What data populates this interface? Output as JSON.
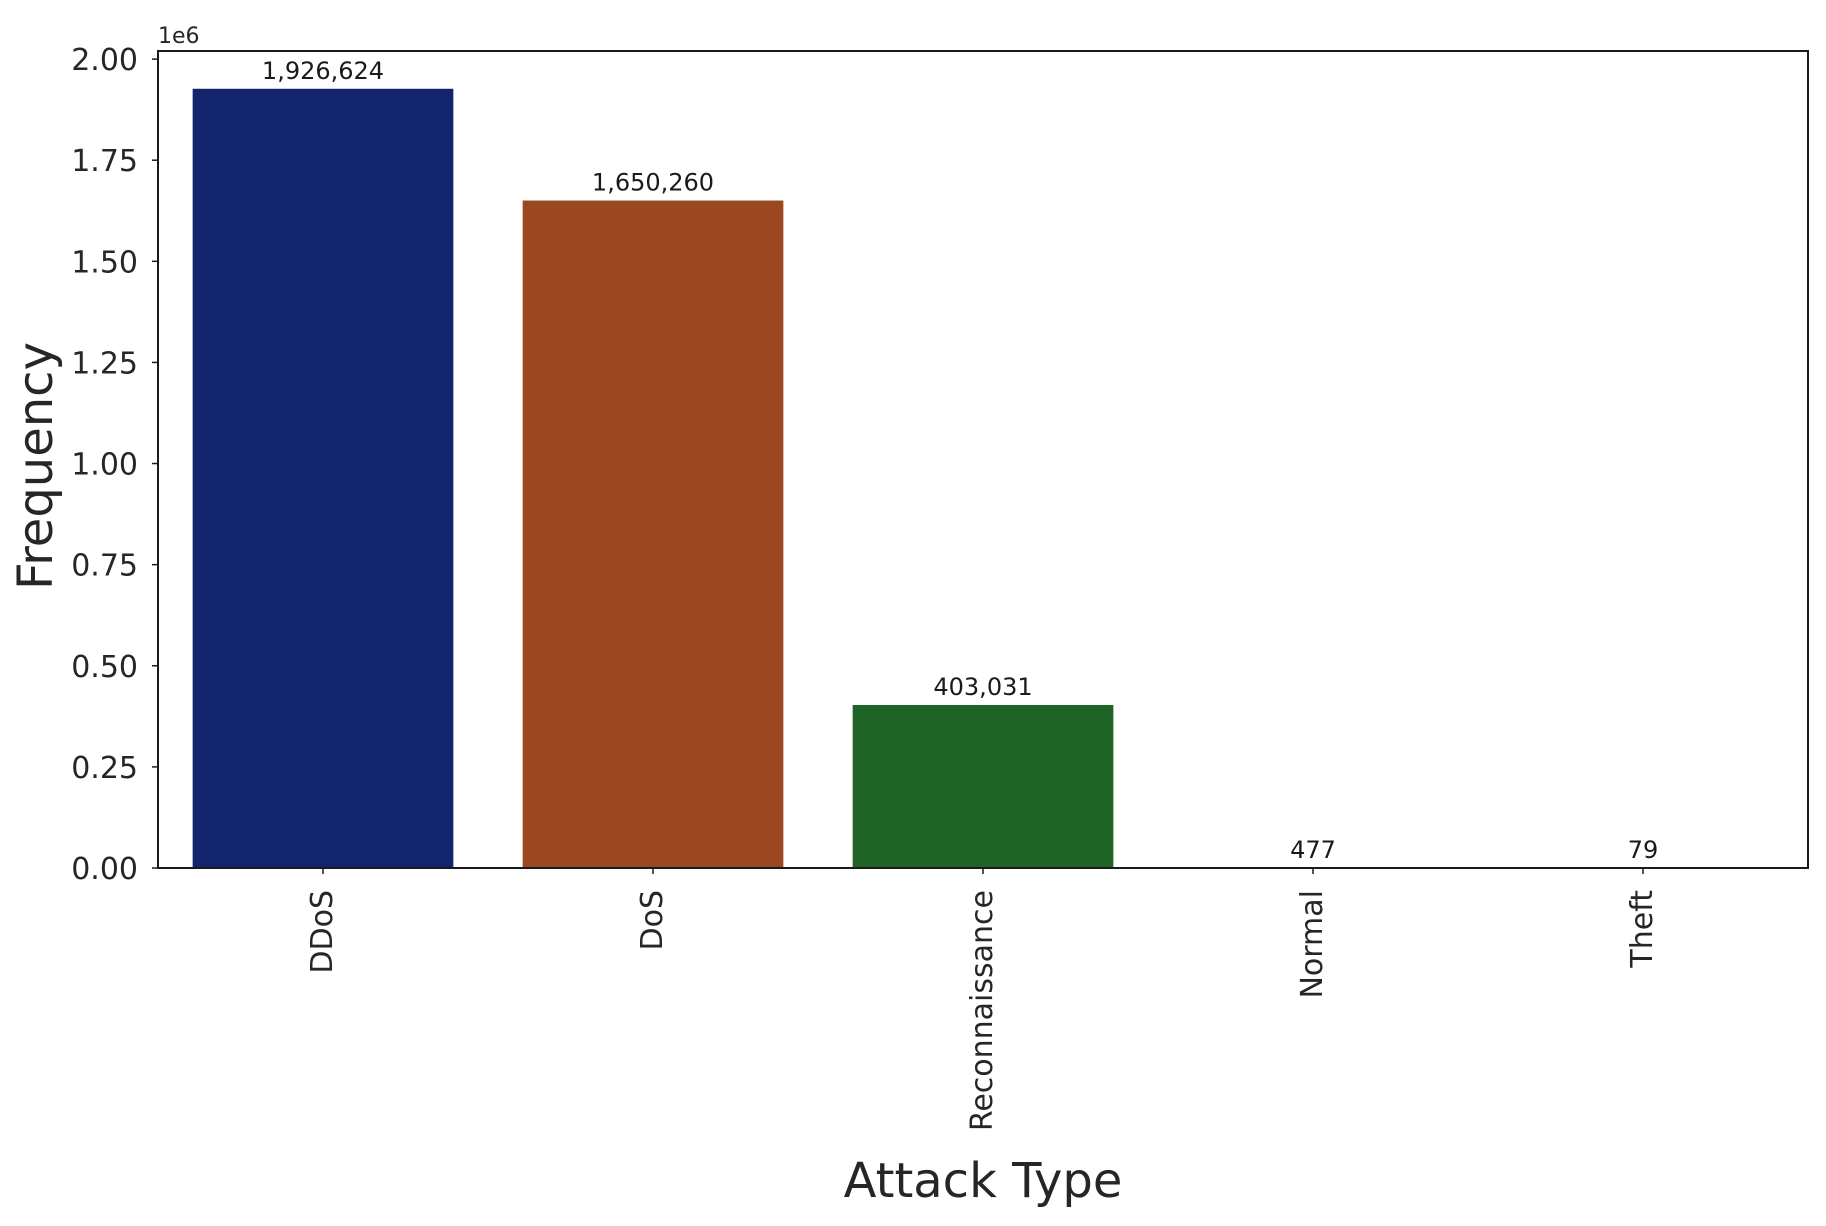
{
  "chart_data": {
    "type": "bar",
    "xlabel": "Attack Type",
    "ylabel": "Frequency",
    "ylim": [
      0,
      2020000
    ],
    "y_scale_label": "1e6",
    "yticks": [
      0,
      250000,
      500000,
      750000,
      1000000,
      1250000,
      1500000,
      1750000,
      2000000
    ],
    "ytick_labels": [
      "0.00",
      "0.25",
      "0.50",
      "0.75",
      "1.00",
      "1.25",
      "1.50",
      "1.75",
      "2.00"
    ],
    "categories": [
      "DDoS",
      "DoS",
      "Reconnaissance",
      "Normal",
      "Theft"
    ],
    "values": [
      1926624,
      1650260,
      403031,
      477,
      79
    ],
    "value_labels": [
      "1,926,624",
      "1,650,260",
      "403,031",
      "477",
      "79"
    ],
    "colors": [
      "#12246b",
      "#9b4720",
      "#1f6326",
      "#7a1d1d",
      "#5b2a7a"
    ],
    "grid": false,
    "legend": "none"
  }
}
